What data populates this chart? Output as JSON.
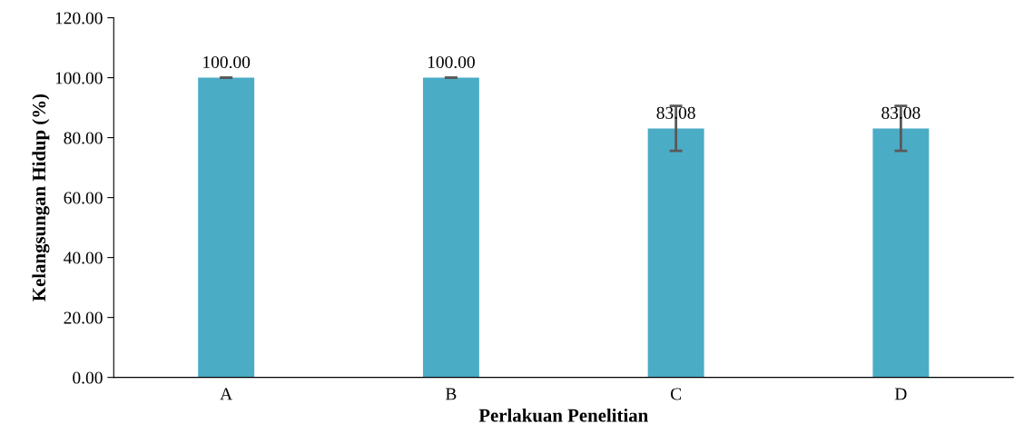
{
  "chart_data": {
    "type": "bar",
    "xlabel": "Perlakuan Penelitian",
    "ylabel": "Kelangsungan Hidup (%)",
    "categories": [
      "A",
      "B",
      "C",
      "D"
    ],
    "values": [
      100.0,
      100.0,
      83.08,
      83.08
    ],
    "errors": [
      0,
      0,
      7.5,
      7.5
    ],
    "value_labels": [
      "100.00",
      "100.00",
      "83.08",
      "83.08"
    ],
    "color": "#4bacc6",
    "ylim": [
      0,
      120
    ],
    "yticks": [
      {
        "value": 0,
        "label": "0.00"
      },
      {
        "value": 20,
        "label": "20.00"
      },
      {
        "value": 40,
        "label": "40.00"
      },
      {
        "value": 60,
        "label": "60.00"
      },
      {
        "value": 80,
        "label": "80.00"
      },
      {
        "value": 100,
        "label": "100.00"
      },
      {
        "value": 120,
        "label": "120.00"
      }
    ],
    "grid": false,
    "legend": false
  }
}
